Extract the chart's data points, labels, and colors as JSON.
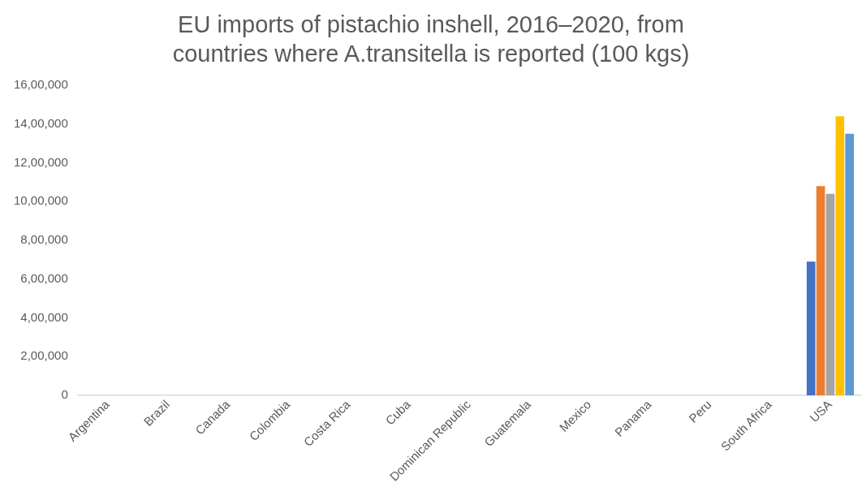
{
  "chart_data": {
    "type": "bar",
    "title": "EU imports of pistachio inshell, 2016–2020, from countries where A.transitella is reported (100 kgs)",
    "categories": [
      "Argentina",
      "Brazil",
      "Canada",
      "Colombia",
      "Costa Rica",
      "Cuba",
      "Dominican Republic",
      "Guatemala",
      "Mexico",
      "Panama",
      "Peru",
      "South Africa",
      "USA"
    ],
    "series": [
      {
        "color": "#4472c4",
        "values": [
          0,
          0,
          0,
          0,
          0,
          0,
          0,
          0,
          0,
          0,
          0,
          0,
          690000
        ]
      },
      {
        "color": "#ed7d31",
        "values": [
          0,
          0,
          0,
          0,
          0,
          0,
          0,
          0,
          0,
          0,
          0,
          0,
          1080000
        ]
      },
      {
        "color": "#a5a5a5",
        "values": [
          0,
          0,
          0,
          0,
          0,
          0,
          0,
          0,
          0,
          0,
          0,
          0,
          1040000
        ]
      },
      {
        "color": "#ffc000",
        "values": [
          0,
          0,
          0,
          0,
          0,
          0,
          0,
          0,
          0,
          0,
          0,
          0,
          1440000
        ]
      },
      {
        "color": "#5b9bd5",
        "values": [
          0,
          0,
          0,
          0,
          0,
          0,
          0,
          0,
          0,
          0,
          0,
          0,
          1350000
        ]
      }
    ],
    "ylim": [
      0,
      1600000
    ],
    "yticks": [
      0,
      {
        "value": 200000,
        "label": "2,00,000"
      },
      {
        "value": 400000,
        "label": "4,00,000"
      },
      {
        "value": 600000,
        "label": "6,00,000"
      },
      {
        "value": 800000,
        "label": "8,00,000"
      },
      {
        "value": 1000000,
        "label": "10,00,000"
      },
      {
        "value": 1200000,
        "label": "12,00,000"
      },
      {
        "value": 1400000,
        "label": "14,00,000"
      },
      {
        "value": 1600000,
        "label": "16,00,000"
      }
    ],
    "grid": false,
    "legend": false
  }
}
